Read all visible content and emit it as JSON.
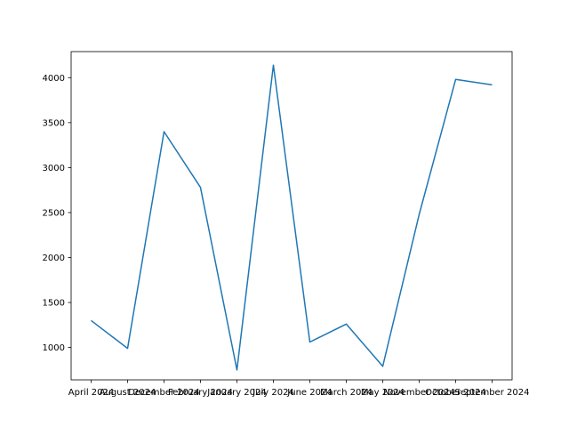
{
  "chart_data": {
    "type": "line",
    "title": "",
    "xlabel": "",
    "ylabel": "",
    "categories": [
      "April 2024",
      "August 2024",
      "December 2024",
      "February 2024",
      "January 2024",
      "July 2024",
      "June 2024",
      "March 2024",
      "May 2024",
      "November 2024",
      "October 2024",
      "September 2024"
    ],
    "series": [
      {
        "values": [
          1300,
          990,
          3400,
          2780,
          750,
          4140,
          1060,
          1260,
          790,
          2480,
          3980,
          3920
        ]
      }
    ],
    "ylim": [
      640,
      4290
    ],
    "yticks": [
      1000,
      1500,
      2000,
      2500,
      3000,
      3500,
      4000
    ],
    "grid": false,
    "colors": {
      "line": "#1f77b4",
      "axes": "#000000"
    }
  }
}
